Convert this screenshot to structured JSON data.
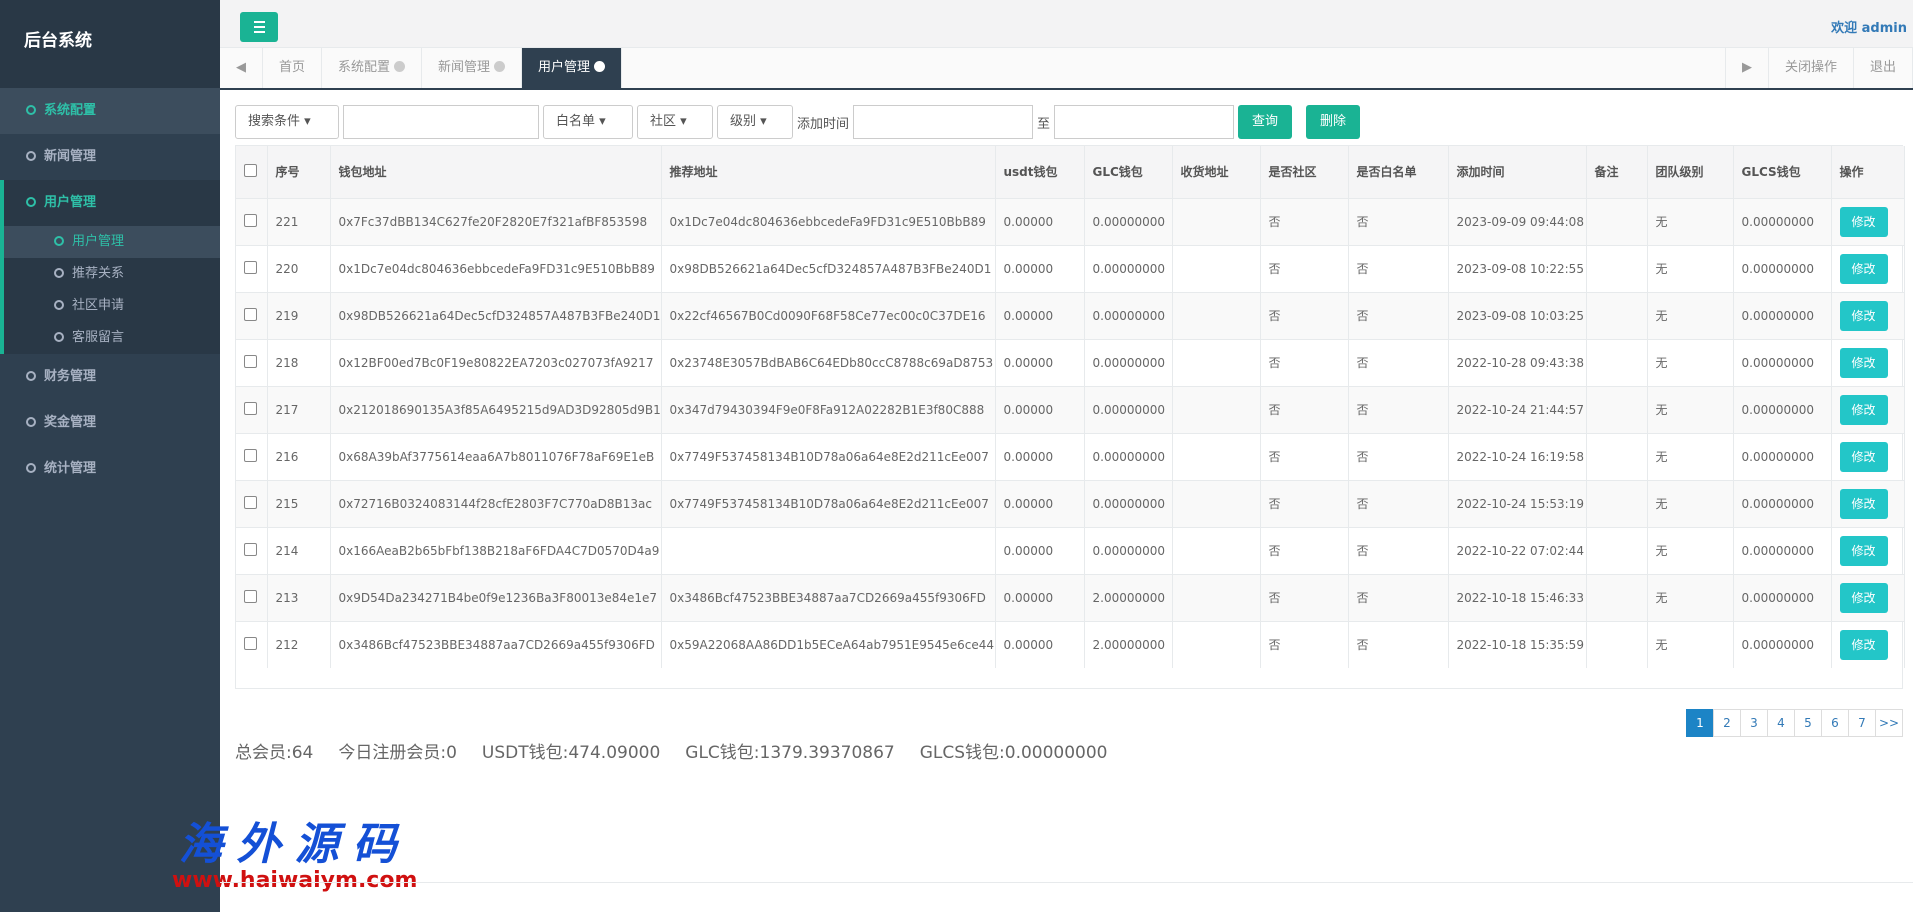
{
  "sidebar": {
    "title": "后台系统",
    "menu": [
      {
        "label": "系统配置"
      },
      {
        "label": "新闻管理"
      },
      {
        "label": "用户管理",
        "children": [
          "用户管理",
          "推荐关系",
          "社区申请",
          "客服留言"
        ]
      },
      {
        "label": "财务管理"
      },
      {
        "label": "奖金管理"
      },
      {
        "label": "统计管理"
      }
    ]
  },
  "header": {
    "welcome": "欢迎 admin"
  },
  "tabs": {
    "items": [
      "首页",
      "系统配置",
      "新闻管理",
      "用户管理"
    ],
    "close_ops": "关闭操作",
    "logout": "退出"
  },
  "search": {
    "selects": [
      "搜索条件",
      "白名单",
      "社区",
      "级别"
    ],
    "time_label": "添加时间",
    "to": "至",
    "query": "查询",
    "delete": "删除"
  },
  "table": {
    "headers": [
      "序号",
      "钱包地址",
      "推荐地址",
      "usdt钱包",
      "GLC钱包",
      "收货地址",
      "是否社区",
      "是否白名单",
      "添加时间",
      "备注",
      "团队级别",
      "GLCS钱包",
      "操作"
    ],
    "edit": "修改",
    "rows": [
      [
        "221",
        "0x7Fc37dBB134C627fe20F2820E7f321afBF853598",
        "0x1Dc7e04dc804636ebbcedeFa9FD31c9E510BbB89",
        "0.00000",
        "0.00000000",
        null,
        "否",
        "否",
        "2023-09-09 09:44:08",
        null,
        "无",
        "0.00000000"
      ],
      [
        "220",
        "0x1Dc7e04dc804636ebbcedeFa9FD31c9E510BbB89",
        "0x98DB526621a64Dec5cfD324857A487B3FBe240D1",
        "0.00000",
        "0.00000000",
        null,
        "否",
        "否",
        "2023-09-08 10:22:55",
        null,
        "无",
        "0.00000000"
      ],
      [
        "219",
        "0x98DB526621a64Dec5cfD324857A487B3FBe240D1",
        "0x22cf46567B0Cd0090F68F58Ce77ec00c0C37DE16",
        "0.00000",
        "0.00000000",
        null,
        "否",
        "否",
        "2023-09-08 10:03:25",
        null,
        "无",
        "0.00000000"
      ],
      [
        "218",
        "0x12BF00ed7Bc0F19e80822EA7203c027073fA9217",
        "0x23748E3057BdBAB6C64EDb80ccC8788c69aD8753",
        "0.00000",
        "0.00000000",
        null,
        "否",
        "否",
        "2022-10-28 09:43:38",
        null,
        "无",
        "0.00000000"
      ],
      [
        "217",
        "0x212018690135A3f85A6495215d9AD3D92805d9B1",
        "0x347d79430394F9e0F8Fa912A02282B1E3f80C888",
        "0.00000",
        "0.00000000",
        null,
        "否",
        "否",
        "2022-10-24 21:44:57",
        null,
        "无",
        "0.00000000"
      ],
      [
        "216",
        "0x68A39bAf3775614eaa6A7b8011076F78aF69E1eB",
        "0x7749F537458134B10D78a06a64e8E2d211cEe007",
        "0.00000",
        "0.00000000",
        null,
        "否",
        "否",
        "2022-10-24 16:19:58",
        null,
        "无",
        "0.00000000"
      ],
      [
        "215",
        "0x72716B0324083144f28cfE2803F7C770aD8B13ac",
        "0x7749F537458134B10D78a06a64e8E2d211cEe007",
        "0.00000",
        "0.00000000",
        null,
        "否",
        "否",
        "2022-10-24 15:53:19",
        null,
        "无",
        "0.00000000"
      ],
      [
        "214",
        "0x166AeaB2b65bFbf138B218aF6FDA4C7D0570D4a9",
        null,
        "0.00000",
        "0.00000000",
        null,
        "否",
        "否",
        "2022-10-22 07:02:44",
        null,
        "无",
        "0.00000000"
      ],
      [
        "213",
        "0x9D54Da234271B4be0f9e1236Ba3F80013e84e1e7",
        "0x3486Bcf47523BBE34887aa7CD2669a455f9306FD",
        "0.00000",
        "2.00000000",
        null,
        "否",
        "否",
        "2022-10-18 15:46:33",
        null,
        "无",
        "0.00000000"
      ],
      [
        "212",
        "0x3486Bcf47523BBE34887aa7CD2669a455f9306FD",
        "0x59A22068AA86DD1b5ECeA64ab7951E9545e6ce44",
        "0.00000",
        "2.00000000",
        null,
        "否",
        "否",
        "2022-10-18 15:35:59",
        null,
        "无",
        "0.00000000"
      ]
    ]
  },
  "pagination": [
    "1",
    "2",
    "3",
    "4",
    "5",
    "6",
    "7",
    ">>"
  ],
  "summary": [
    "总会员:64",
    "今日注册会员:0",
    "USDT钱包:474.09000",
    "GLC钱包:1379.39370867",
    "GLCS钱包:0.00000000"
  ],
  "watermark": {
    "title": "海外源码",
    "url": "www.haiwaiym.com"
  }
}
